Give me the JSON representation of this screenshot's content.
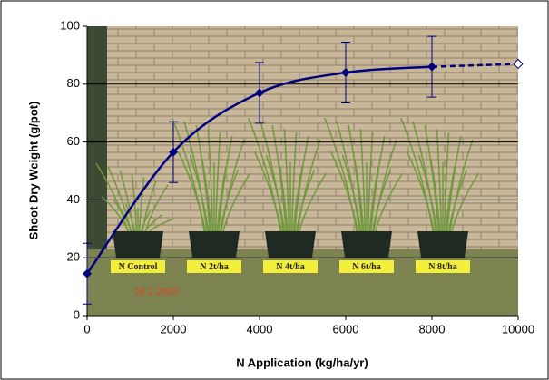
{
  "chart_data": {
    "type": "line",
    "x_label": "N Application (kg/ha/yr)",
    "y_label": "Shoot Dry Weight (g/pot)",
    "x": [
      0,
      2000,
      4000,
      6000,
      8000
    ],
    "series": [
      {
        "color": "#000080",
        "values": [
          14.5,
          56.5,
          77,
          84,
          86
        ],
        "errors": [
          10.5,
          10.5,
          10.5,
          10.5,
          10.5
        ]
      },
      {
        "color": "#000080",
        "x": [
          10000
        ],
        "values": [
          87
        ],
        "dashed": true,
        "hollow": true
      }
    ],
    "xlim": [
      0,
      10000
    ],
    "xticks": [
      0,
      2000,
      4000,
      6000,
      8000,
      10000
    ],
    "ylim": [
      0,
      100
    ],
    "yticks": [
      0,
      20,
      40,
      60,
      80,
      100
    ],
    "grid": true,
    "photo_labels": [
      "N Control",
      "N 2t/ha",
      "N 4t/ha",
      "N 6t/ha",
      "N 8t/ha"
    ],
    "photo_date": "18   1  2003"
  }
}
